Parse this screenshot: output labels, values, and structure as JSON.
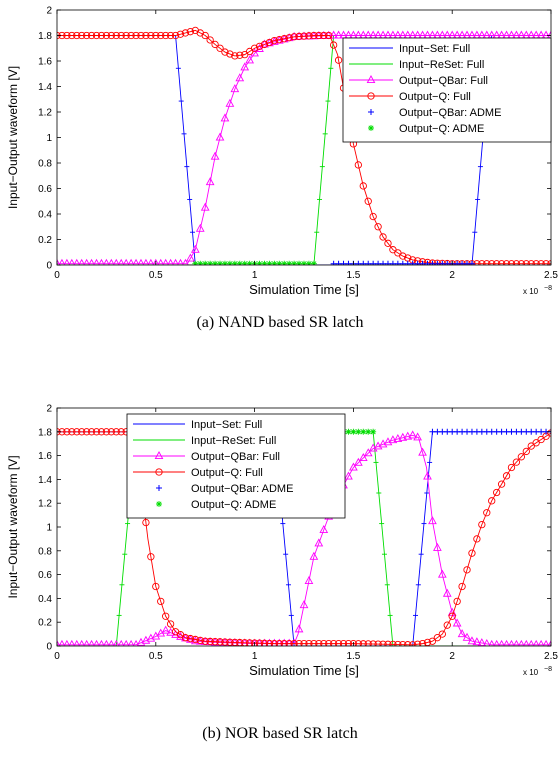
{
  "chart_data": [
    {
      "type": "line",
      "caption": "(a) NAND based SR latch",
      "xlabel": "Simulation Time [s]",
      "ylabel": "Input−Output waveform [V]",
      "x_multiplier": "x 10",
      "x_exponent": "−8",
      "xlim": [
        0,
        2.5
      ],
      "ylim": [
        0,
        2
      ],
      "xticks": [
        0,
        0.5,
        1,
        1.5,
        2,
        2.5
      ],
      "xtick_labels": [
        "0",
        "0.5",
        "1",
        "1.5",
        "2",
        "2.5"
      ],
      "yticks": [
        0,
        0.2,
        0.4,
        0.6,
        0.8,
        1,
        1.2,
        1.4,
        1.6,
        1.8,
        2
      ],
      "ytick_labels": [
        "0",
        "0.2",
        "0.4",
        "0.6",
        "0.8",
        "1",
        "1.2",
        "1.4",
        "1.6",
        "1.8",
        "2"
      ],
      "legend_position": "top-right",
      "series": [
        {
          "name": "Input−Set: Full",
          "color": "#0000ff",
          "marker": "none",
          "x": [
            0,
            0.6,
            0.7,
            2.1,
            2.2,
            2.5
          ],
          "y": [
            1.8,
            1.8,
            0,
            0,
            1.8,
            1.8
          ]
        },
        {
          "name": "Input−ReSet: Full",
          "color": "#00dd00",
          "marker": "none",
          "x": [
            0,
            1.3,
            1.4,
            2.5
          ],
          "y": [
            0,
            0,
            1.8,
            1.8
          ]
        },
        {
          "name": "Output−QBar: Full",
          "color": "#ff00ff",
          "marker": "triangle",
          "x": [
            0,
            0.66,
            0.7,
            0.75,
            0.8,
            0.85,
            0.9,
            0.95,
            1.0,
            1.05,
            1.2,
            1.4,
            2.5
          ],
          "y": [
            0.01,
            0.01,
            0.12,
            0.45,
            0.85,
            1.15,
            1.38,
            1.55,
            1.66,
            1.73,
            1.79,
            1.8,
            1.8
          ]
        },
        {
          "name": "Output−Q: Full",
          "color": "#ff0000",
          "marker": "circle",
          "x": [
            0,
            0.6,
            0.65,
            0.7,
            0.75,
            0.8,
            0.85,
            0.9,
            0.95,
            1.0,
            1.1,
            1.2,
            1.3,
            1.38,
            1.42,
            1.46,
            1.5,
            1.55,
            1.6,
            1.65,
            1.7,
            1.75,
            1.8,
            1.85,
            1.9,
            2.0,
            2.5
          ],
          "y": [
            1.8,
            1.8,
            1.82,
            1.84,
            1.8,
            1.73,
            1.67,
            1.64,
            1.65,
            1.7,
            1.76,
            1.79,
            1.8,
            1.8,
            1.65,
            1.3,
            0.95,
            0.62,
            0.38,
            0.22,
            0.12,
            0.07,
            0.04,
            0.025,
            0.015,
            0.01,
            0.01
          ]
        },
        {
          "name": "Output−QBar: ADME",
          "color": "#0000ff",
          "marker": "plus",
          "x": [
            1.4,
            2.1
          ],
          "y": [
            0.01,
            0.01
          ]
        },
        {
          "name": "Output−Q: ADME",
          "color": "#00dd00",
          "marker": "star",
          "x": [
            0.7,
            1.3
          ],
          "y": [
            0.01,
            0.01
          ]
        }
      ]
    },
    {
      "type": "line",
      "caption": "(b) NOR based SR latch",
      "xlabel": "Simulation Time [s]",
      "ylabel": "Input−Output waveform [V]",
      "x_multiplier": "x 10",
      "x_exponent": "−8",
      "xlim": [
        0,
        2.5
      ],
      "ylim": [
        0,
        2
      ],
      "xticks": [
        0,
        0.5,
        1,
        1.5,
        2,
        2.5
      ],
      "xtick_labels": [
        "0",
        "0.5",
        "1",
        "1.5",
        "2",
        "2.5"
      ],
      "yticks": [
        0,
        0.2,
        0.4,
        0.6,
        0.8,
        1,
        1.2,
        1.4,
        1.6,
        1.8,
        2
      ],
      "ytick_labels": [
        "0",
        "0.2",
        "0.4",
        "0.6",
        "0.8",
        "1",
        "1.2",
        "1.4",
        "1.6",
        "1.8",
        "2"
      ],
      "legend_position": "top-left",
      "series": [
        {
          "name": "Input−Set: Full",
          "color": "#0000ff",
          "marker": "none",
          "x": [
            0,
            1.1,
            1.2,
            1.8,
            1.9,
            2.5
          ],
          "y": [
            1.8,
            1.8,
            0,
            0,
            1.8,
            1.8
          ]
        },
        {
          "name": "Input−ReSet: Full",
          "color": "#00dd00",
          "marker": "none",
          "x": [
            0,
            0.3,
            0.4,
            1.6,
            1.7,
            2.5
          ],
          "y": [
            0,
            0,
            1.8,
            1.8,
            0,
            0
          ]
        },
        {
          "name": "Output−QBar: Full",
          "color": "#ff00ff",
          "marker": "triangle",
          "x": [
            0,
            0.4,
            0.5,
            0.55,
            0.62,
            0.7,
            0.8,
            1.0,
            1.2,
            1.22,
            1.3,
            1.4,
            1.5,
            1.6,
            1.7,
            1.8,
            1.83,
            1.87,
            1.9,
            1.95,
            2.0,
            2.05,
            2.1,
            2.2,
            2.5
          ],
          "y": [
            0.01,
            0.01,
            0.08,
            0.13,
            0.08,
            0.04,
            0.03,
            0.02,
            0.02,
            0.1,
            0.75,
            1.2,
            1.5,
            1.66,
            1.73,
            1.77,
            1.75,
            1.5,
            1.05,
            0.6,
            0.28,
            0.1,
            0.04,
            0.01,
            0.01
          ]
        },
        {
          "name": "Output−Q: Full",
          "color": "#ff0000",
          "marker": "circle",
          "x": [
            0,
            0.38,
            0.42,
            0.46,
            0.5,
            0.55,
            0.6,
            0.65,
            0.75,
            0.9,
            1.1,
            1.5,
            1.8,
            1.85,
            1.9,
            1.95,
            2.0,
            2.05,
            2.1,
            2.15,
            2.2,
            2.3,
            2.4,
            2.5
          ],
          "y": [
            1.8,
            1.8,
            1.45,
            0.9,
            0.5,
            0.25,
            0.12,
            0.07,
            0.04,
            0.03,
            0.02,
            0.02,
            0.01,
            0.02,
            0.04,
            0.1,
            0.25,
            0.5,
            0.78,
            1.02,
            1.22,
            1.5,
            1.68,
            1.79
          ]
        },
        {
          "name": "Output−QBar: ADME",
          "color": "#0000ff",
          "marker": "plus",
          "x": [
            1.9,
            2.5
          ],
          "y": [
            1.8,
            1.8
          ]
        },
        {
          "name": "Output−Q: ADME",
          "color": "#00dd00",
          "marker": "star",
          "x": [
            0.4,
            1.6
          ],
          "y": [
            1.8,
            1.8
          ]
        }
      ]
    }
  ]
}
